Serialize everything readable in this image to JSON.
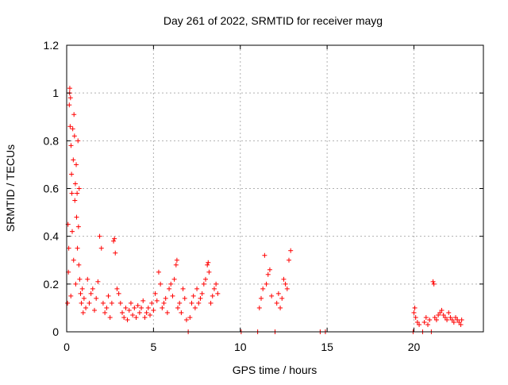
{
  "chart_data": {
    "type": "scatter",
    "title": "Day 261 of 2022, SRMTID for receiver mayg",
    "xlabel": "GPS time / hours",
    "ylabel": "SRMTID / TECUs",
    "xlim": [
      0,
      24
    ],
    "ylim": [
      0,
      1.2
    ],
    "xticks": [
      0,
      5,
      10,
      15,
      20
    ],
    "yticks": [
      0,
      0.2,
      0.4,
      0.6,
      0.8,
      1,
      1.2
    ],
    "xtick_labels": [
      "0",
      "5",
      "10",
      "15",
      "20"
    ],
    "ytick_labels": [
      "0",
      "0.2",
      "0.4",
      "0.6",
      "0.8",
      "1",
      "1.2"
    ],
    "grid": true,
    "marker": "+",
    "color": "#ff0000",
    "series": [
      {
        "name": "SRMTID",
        "points": [
          [
            0.05,
            0.12
          ],
          [
            0.08,
            0.45
          ],
          [
            0.1,
            0.25
          ],
          [
            0.12,
            0.35
          ],
          [
            0.15,
            0.95
          ],
          [
            0.17,
            1.0
          ],
          [
            0.18,
            1.02
          ],
          [
            0.2,
            0.86
          ],
          [
            0.22,
            0.98
          ],
          [
            0.24,
            0.15
          ],
          [
            0.25,
            0.78
          ],
          [
            0.28,
            0.66
          ],
          [
            0.3,
            0.58
          ],
          [
            0.32,
            0.42
          ],
          [
            0.35,
            0.85
          ],
          [
            0.38,
            0.72
          ],
          [
            0.4,
            0.3
          ],
          [
            0.42,
            0.91
          ],
          [
            0.45,
            0.82
          ],
          [
            0.47,
            0.55
          ],
          [
            0.5,
            0.62
          ],
          [
            0.52,
            0.2
          ],
          [
            0.55,
            0.7
          ],
          [
            0.57,
            0.48
          ],
          [
            0.6,
            0.58
          ],
          [
            0.62,
            0.35
          ],
          [
            0.65,
            0.8
          ],
          [
            0.68,
            0.44
          ],
          [
            0.7,
            0.28
          ],
          [
            0.72,
            0.6
          ],
          [
            0.75,
            0.22
          ],
          [
            0.8,
            0.16
          ],
          [
            0.85,
            0.12
          ],
          [
            0.9,
            0.18
          ],
          [
            0.95,
            0.08
          ],
          [
            1.0,
            0.14
          ],
          [
            1.1,
            0.1
          ],
          [
            1.2,
            0.22
          ],
          [
            1.3,
            0.12
          ],
          [
            1.4,
            0.16
          ],
          [
            1.5,
            0.18
          ],
          [
            1.6,
            0.09
          ],
          [
            1.7,
            0.14
          ],
          [
            1.8,
            0.21
          ],
          [
            1.9,
            0.4
          ],
          [
            2.0,
            0.35
          ],
          [
            2.1,
            0.12
          ],
          [
            2.2,
            0.08
          ],
          [
            2.3,
            0.1
          ],
          [
            2.4,
            0.15
          ],
          [
            2.5,
            0.06
          ],
          [
            2.6,
            0.12
          ],
          [
            2.7,
            0.38
          ],
          [
            2.75,
            0.39
          ],
          [
            2.8,
            0.33
          ],
          [
            2.9,
            0.18
          ],
          [
            3.0,
            0.16
          ],
          [
            3.1,
            0.12
          ],
          [
            3.2,
            0.08
          ],
          [
            3.3,
            0.06
          ],
          [
            3.4,
            0.1
          ],
          [
            3.5,
            0.05
          ],
          [
            3.6,
            0.09
          ],
          [
            3.7,
            0.12
          ],
          [
            3.8,
            0.07
          ],
          [
            3.9,
            0.1
          ],
          [
            4.0,
            0.06
          ],
          [
            4.1,
            0.11
          ],
          [
            4.2,
            0.08
          ],
          [
            4.3,
            0.1
          ],
          [
            4.4,
            0.13
          ],
          [
            4.5,
            0.06
          ],
          [
            4.6,
            0.08
          ],
          [
            4.7,
            0.1
          ],
          [
            4.8,
            0.07
          ],
          [
            4.9,
            0.12
          ],
          [
            5.0,
            0.09
          ],
          [
            5.1,
            0.16
          ],
          [
            5.2,
            0.13
          ],
          [
            5.3,
            0.25
          ],
          [
            5.4,
            0.2
          ],
          [
            5.5,
            0.1
          ],
          [
            5.6,
            0.12
          ],
          [
            5.7,
            0.14
          ],
          [
            5.8,
            0.08
          ],
          [
            5.9,
            0.18
          ],
          [
            6.0,
            0.2
          ],
          [
            6.1,
            0.15
          ],
          [
            6.2,
            0.22
          ],
          [
            6.3,
            0.28
          ],
          [
            6.35,
            0.3
          ],
          [
            6.4,
            0.1
          ],
          [
            6.5,
            0.12
          ],
          [
            6.6,
            0.08
          ],
          [
            6.7,
            0.18
          ],
          [
            6.8,
            0.14
          ],
          [
            6.9,
            0.05
          ],
          [
            7.0,
            0.0
          ],
          [
            7.1,
            0.06
          ],
          [
            7.2,
            0.12
          ],
          [
            7.3,
            0.15
          ],
          [
            7.4,
            0.1
          ],
          [
            7.5,
            0.18
          ],
          [
            7.6,
            0.12
          ],
          [
            7.7,
            0.14
          ],
          [
            7.8,
            0.16
          ],
          [
            7.9,
            0.2
          ],
          [
            8.0,
            0.22
          ],
          [
            8.1,
            0.28
          ],
          [
            8.15,
            0.29
          ],
          [
            8.2,
            0.25
          ],
          [
            8.3,
            0.12
          ],
          [
            8.4,
            0.15
          ],
          [
            8.5,
            0.18
          ],
          [
            8.6,
            0.2
          ],
          [
            8.7,
            0.16
          ],
          [
            10.05,
            0.0
          ],
          [
            11.0,
            0.0
          ],
          [
            11.1,
            0.1
          ],
          [
            11.2,
            0.14
          ],
          [
            11.3,
            0.18
          ],
          [
            11.4,
            0.32
          ],
          [
            11.5,
            0.2
          ],
          [
            11.6,
            0.24
          ],
          [
            11.7,
            0.26
          ],
          [
            11.8,
            0.15
          ],
          [
            12.0,
            0.0
          ],
          [
            12.1,
            0.12
          ],
          [
            12.2,
            0.16
          ],
          [
            12.3,
            0.1
          ],
          [
            12.4,
            0.14
          ],
          [
            12.5,
            0.22
          ],
          [
            12.6,
            0.2
          ],
          [
            12.7,
            0.18
          ],
          [
            12.8,
            0.3
          ],
          [
            12.9,
            0.34
          ],
          [
            14.6,
            0.0
          ],
          [
            14.9,
            0.0
          ],
          [
            19.95,
            0.0
          ],
          [
            20.0,
            0.08
          ],
          [
            20.05,
            0.1
          ],
          [
            20.1,
            0.06
          ],
          [
            20.2,
            0.04
          ],
          [
            20.3,
            0.03
          ],
          [
            20.5,
            0.0
          ],
          [
            20.6,
            0.04
          ],
          [
            20.7,
            0.06
          ],
          [
            20.8,
            0.03
          ],
          [
            20.9,
            0.05
          ],
          [
            21.0,
            0.0
          ],
          [
            21.1,
            0.21
          ],
          [
            21.15,
            0.2
          ],
          [
            21.2,
            0.06
          ],
          [
            21.3,
            0.05
          ],
          [
            21.4,
            0.07
          ],
          [
            21.5,
            0.08
          ],
          [
            21.6,
            0.09
          ],
          [
            21.7,
            0.07
          ],
          [
            21.8,
            0.06
          ],
          [
            21.9,
            0.05
          ],
          [
            22.0,
            0.08
          ],
          [
            22.1,
            0.06
          ],
          [
            22.2,
            0.05
          ],
          [
            22.3,
            0.04
          ],
          [
            22.4,
            0.06
          ],
          [
            22.5,
            0.05
          ],
          [
            22.6,
            0.04
          ],
          [
            22.7,
            0.03
          ],
          [
            22.75,
            0.05
          ]
        ]
      }
    ]
  }
}
